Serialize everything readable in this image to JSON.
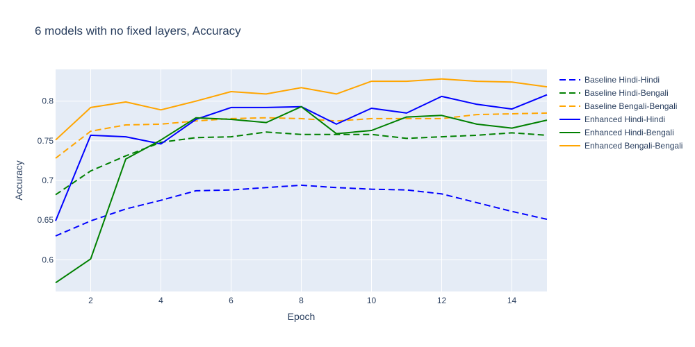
{
  "chart_data": {
    "type": "line",
    "title": "6 models with no fixed layers, Accuracy",
    "xlabel": "Epoch",
    "ylabel": "Accuracy",
    "xlim": [
      1,
      15
    ],
    "ylim": [
      0.56,
      0.84
    ],
    "x_ticks": [
      2,
      4,
      6,
      8,
      10,
      12,
      14
    ],
    "y_ticks": [
      0.6,
      0.65,
      0.7,
      0.75,
      0.8
    ],
    "y_tick_labels": [
      "0.6",
      "0.65",
      "0.7",
      "0.75",
      "0.8"
    ],
    "grid": true,
    "legend_position": "right",
    "x": [
      1,
      2,
      3,
      4,
      5,
      6,
      7,
      8,
      9,
      10,
      11,
      12,
      13,
      14,
      15
    ],
    "series": [
      {
        "name": "Baseline Hindi-Hindi",
        "color": "#0000ff",
        "dash": "dash",
        "values": [
          0.63,
          0.649,
          0.664,
          0.675,
          0.687,
          0.688,
          0.691,
          0.694,
          0.691,
          0.689,
          0.688,
          0.683,
          0.672,
          0.661,
          0.651
        ]
      },
      {
        "name": "Baseline Hindi-Bengali",
        "color": "#008000",
        "dash": "dash",
        "values": [
          0.682,
          0.712,
          0.731,
          0.748,
          0.754,
          0.755,
          0.761,
          0.758,
          0.758,
          0.758,
          0.753,
          0.755,
          0.757,
          0.76,
          0.757
        ]
      },
      {
        "name": "Baseline Bengali-Bengali",
        "color": "#ffa500",
        "dash": "dash",
        "values": [
          0.728,
          0.762,
          0.77,
          0.771,
          0.775,
          0.778,
          0.779,
          0.778,
          0.775,
          0.778,
          0.778,
          0.778,
          0.783,
          0.784,
          0.785
        ]
      },
      {
        "name": "Enhanced Hindi-Hindi",
        "color": "#0000ff",
        "dash": "solid",
        "values": [
          0.649,
          0.757,
          0.755,
          0.746,
          0.777,
          0.792,
          0.792,
          0.793,
          0.771,
          0.791,
          0.785,
          0.806,
          0.796,
          0.79,
          0.808
        ]
      },
      {
        "name": "Enhanced Hindi-Bengali",
        "color": "#008000",
        "dash": "solid",
        "values": [
          0.571,
          0.601,
          0.727,
          0.751,
          0.779,
          0.777,
          0.773,
          0.793,
          0.759,
          0.763,
          0.78,
          0.782,
          0.771,
          0.766,
          0.776
        ]
      },
      {
        "name": "Enhanced Bengali-Bengali",
        "color": "#ffa500",
        "dash": "solid",
        "values": [
          0.751,
          0.792,
          0.799,
          0.789,
          0.8,
          0.812,
          0.809,
          0.817,
          0.809,
          0.825,
          0.825,
          0.828,
          0.825,
          0.824,
          0.818
        ]
      }
    ]
  }
}
